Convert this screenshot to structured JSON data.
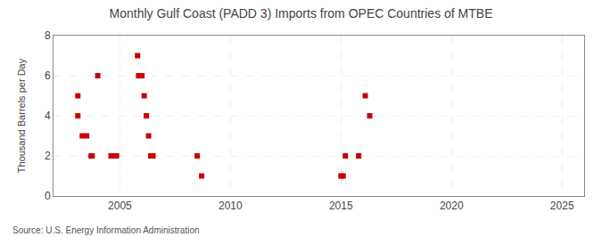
{
  "chart_data": {
    "type": "scatter",
    "title": "Monthly Gulf Coast (PADD 3) Imports from OPEC Countries of MTBE",
    "ylabel": "Thousand Barrels per Day",
    "source": "Source: U.S. Energy Information Administration",
    "color": "#cc0000",
    "marker": "square",
    "grid": true,
    "xlim": [
      2002,
      2026
    ],
    "ylim": [
      0,
      8
    ],
    "xticks": [
      2005,
      2010,
      2015,
      2020,
      2025
    ],
    "yticks": [
      0,
      2,
      4,
      6,
      8
    ],
    "x": [
      2003.1,
      2003.1,
      2003.3,
      2003.5,
      2003.7,
      2003.75,
      2004.0,
      2004.6,
      2004.75,
      2004.85,
      2005.8,
      2005.85,
      2006.0,
      2006.1,
      2006.2,
      2006.3,
      2006.4,
      2006.5,
      2008.5,
      2008.7,
      2015.0,
      2015.1,
      2015.2,
      2015.8,
      2016.1,
      2016.3
    ],
    "values": [
      5,
      4,
      3,
      3,
      2,
      2,
      6,
      2,
      2,
      2,
      7,
      6,
      6,
      5,
      4,
      3,
      2,
      2,
      2,
      1,
      1,
      1,
      2,
      2,
      5,
      4
    ]
  }
}
